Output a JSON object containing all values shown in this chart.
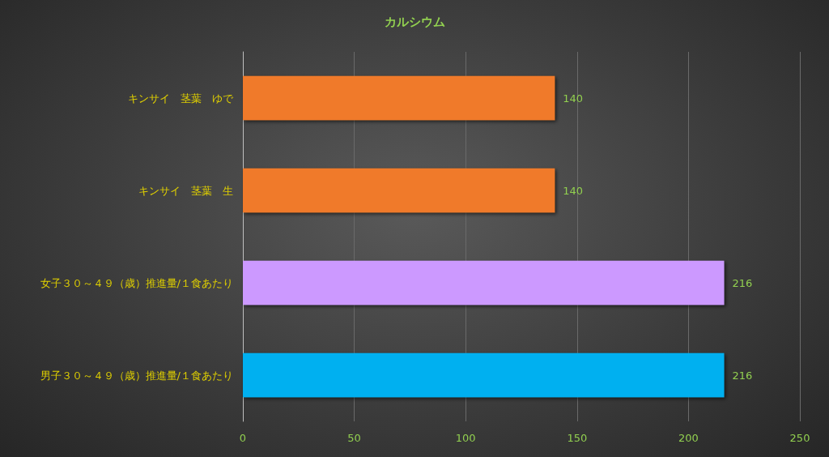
{
  "chart_data": {
    "type": "bar",
    "orientation": "horizontal",
    "title": "カルシウム",
    "categories": [
      "キンサイ　茎葉　ゆで",
      "キンサイ　茎葉　生",
      "女子３０～４９（歳）推進量/１食あたり",
      "男子３０～４９（歳）推進量/１食あたり"
    ],
    "values": [
      140,
      140,
      216,
      216
    ],
    "colors": [
      "#f07a2a",
      "#f07a2a",
      "#cc99ff",
      "#00b0f0"
    ],
    "xlim": [
      0,
      250
    ],
    "xticks": [
      0,
      50,
      100,
      150,
      200,
      250
    ],
    "grid": "x",
    "data_labels": true
  }
}
